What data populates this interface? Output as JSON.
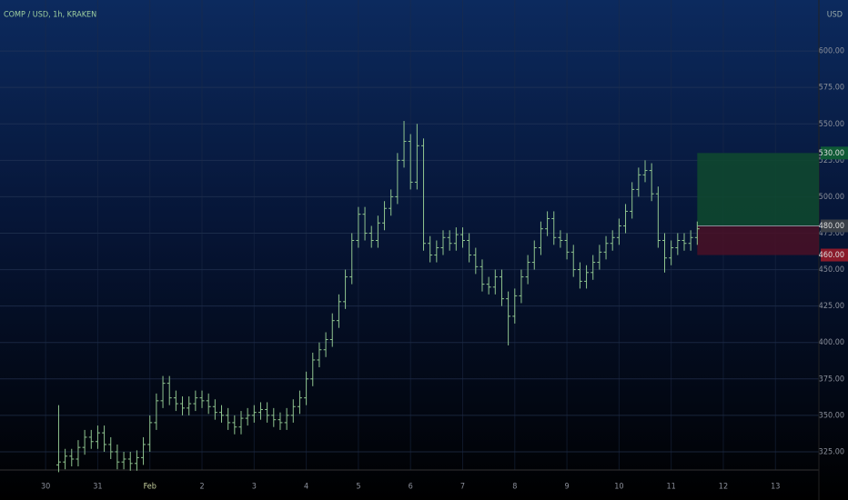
{
  "chart_data": {
    "type": "ohlc",
    "title": "COMP / USD, 1h, KRAKEN",
    "currency": "USD",
    "color": "#8fc48f",
    "x": [
      6,
      9,
      12,
      15,
      18,
      21,
      24,
      27,
      30,
      33,
      36,
      39,
      42,
      45,
      48,
      51,
      54,
      57,
      60,
      63,
      66,
      69,
      72,
      75,
      78,
      81,
      84,
      87,
      90,
      93,
      96,
      99,
      102,
      105,
      108,
      111,
      114,
      117,
      120,
      123,
      126,
      129,
      132,
      135,
      138,
      141,
      144,
      147,
      150,
      153,
      156,
      159,
      162,
      165,
      168,
      171,
      174,
      177,
      180,
      183,
      186,
      189,
      192,
      195,
      198,
      201,
      204,
      207,
      210,
      213,
      216,
      219,
      222,
      225,
      228,
      231,
      234,
      237,
      240,
      243,
      246,
      249,
      252,
      255,
      258,
      261,
      264,
      267,
      270,
      273,
      276,
      279,
      282,
      285,
      288,
      291,
      294,
      297,
      300
    ],
    "open": [
      316,
      318,
      322,
      320,
      328,
      335,
      332,
      338,
      330,
      325,
      318,
      320,
      317,
      321,
      330,
      345,
      360,
      372,
      362,
      358,
      355,
      358,
      362,
      360,
      356,
      352,
      350,
      345,
      342,
      348,
      350,
      352,
      354,
      350,
      347,
      345,
      350,
      356,
      362,
      375,
      388,
      395,
      402,
      415,
      428,
      445,
      470,
      488,
      475,
      470,
      482,
      492,
      500,
      525,
      538,
      510,
      535,
      468,
      460,
      465,
      472,
      468,
      474,
      470,
      460,
      452,
      440,
      438,
      445,
      430,
      418,
      432,
      445,
      455,
      465,
      478,
      485,
      472,
      470,
      462,
      450,
      442,
      448,
      455,
      462,
      468,
      472,
      480,
      490,
      505,
      515,
      518,
      502,
      470,
      458,
      465,
      470,
      468,
      472
    ],
    "high": [
      357,
      327,
      327,
      333,
      340,
      340,
      343,
      343,
      335,
      330,
      325,
      325,
      326,
      335,
      350,
      365,
      377,
      377,
      367,
      363,
      363,
      367,
      367,
      365,
      361,
      357,
      355,
      350,
      353,
      355,
      357,
      359,
      359,
      355,
      352,
      355,
      361,
      367,
      380,
      393,
      400,
      407,
      420,
      433,
      450,
      475,
      493,
      493,
      480,
      487,
      497,
      505,
      530,
      552,
      543,
      550,
      540,
      473,
      470,
      477,
      477,
      479,
      479,
      475,
      465,
      457,
      445,
      450,
      450,
      435,
      437,
      450,
      460,
      470,
      483,
      490,
      490,
      477,
      475,
      467,
      455,
      453,
      460,
      467,
      473,
      477,
      485,
      495,
      510,
      520,
      525,
      523,
      507,
      475,
      470,
      475,
      475,
      477,
      483
    ],
    "low": [
      311,
      313,
      315,
      315,
      323,
      327,
      327,
      325,
      320,
      313,
      313,
      312,
      312,
      316,
      325,
      340,
      355,
      357,
      353,
      350,
      350,
      353,
      355,
      351,
      347,
      345,
      340,
      337,
      337,
      343,
      345,
      347,
      345,
      342,
      340,
      340,
      345,
      351,
      357,
      370,
      383,
      390,
      397,
      410,
      423,
      440,
      465,
      470,
      465,
      465,
      477,
      487,
      495,
      520,
      505,
      505,
      463,
      455,
      455,
      460,
      463,
      463,
      465,
      455,
      447,
      435,
      433,
      433,
      425,
      398,
      413,
      427,
      440,
      450,
      460,
      473,
      467,
      465,
      457,
      445,
      437,
      437,
      443,
      450,
      457,
      463,
      467,
      475,
      485,
      500,
      510,
      497,
      465,
      448,
      453,
      460,
      463,
      463,
      467
    ],
    "close": [
      318,
      322,
      320,
      328,
      335,
      332,
      338,
      330,
      325,
      318,
      320,
      317,
      321,
      330,
      345,
      360,
      372,
      362,
      358,
      355,
      358,
      362,
      360,
      356,
      352,
      350,
      345,
      342,
      348,
      350,
      352,
      354,
      350,
      347,
      345,
      350,
      356,
      362,
      375,
      388,
      395,
      402,
      415,
      428,
      445,
      470,
      488,
      475,
      470,
      482,
      492,
      500,
      525,
      538,
      510,
      535,
      468,
      460,
      465,
      472,
      468,
      474,
      470,
      460,
      452,
      440,
      438,
      445,
      430,
      418,
      432,
      445,
      455,
      465,
      478,
      485,
      472,
      470,
      462,
      450,
      442,
      448,
      455,
      462,
      468,
      472,
      480,
      490,
      505,
      515,
      518,
      502,
      470,
      458,
      465,
      470,
      468,
      472,
      478
    ],
    "xlim": [
      -21,
      356
    ],
    "ylim": [
      312.5,
      635
    ],
    "xticks": [
      {
        "value": 0,
        "label": "30"
      },
      {
        "value": 24,
        "label": "31"
      },
      {
        "value": 48,
        "label": "Feb"
      },
      {
        "value": 72,
        "label": "2"
      },
      {
        "value": 96,
        "label": "3"
      },
      {
        "value": 120,
        "label": "4"
      },
      {
        "value": 144,
        "label": "5"
      },
      {
        "value": 168,
        "label": "6"
      },
      {
        "value": 192,
        "label": "7"
      },
      {
        "value": 216,
        "label": "8"
      },
      {
        "value": 240,
        "label": "9"
      },
      {
        "value": 264,
        "label": "10"
      },
      {
        "value": 288,
        "label": "11"
      },
      {
        "value": 312,
        "label": "12"
      },
      {
        "value": 336,
        "label": "13"
      }
    ],
    "yticks": [
      {
        "value": 325,
        "label": "325.00"
      },
      {
        "value": 350,
        "label": "350.00"
      },
      {
        "value": 375,
        "label": "375.00"
      },
      {
        "value": 400,
        "label": "400.00"
      },
      {
        "value": 425,
        "label": "425.00"
      },
      {
        "value": 450,
        "label": "450.00"
      },
      {
        "value": 475,
        "label": "475.00"
      },
      {
        "value": 500,
        "label": "500.00"
      },
      {
        "value": 525,
        "label": "525.00"
      },
      {
        "value": 550,
        "label": "550.00"
      },
      {
        "value": 575,
        "label": "575.00"
      },
      {
        "value": 600,
        "label": "600.00"
      }
    ],
    "grid": true,
    "position": {
      "start": 300,
      "end": 356,
      "target": {
        "value": 530,
        "label": "530.00"
      },
      "entry": {
        "value": 480,
        "label": "480.00"
      },
      "stop": {
        "value": 460,
        "label": "460.00"
      },
      "profit_color": "#0f4a2e",
      "loss_color": "#4a1026"
    }
  }
}
